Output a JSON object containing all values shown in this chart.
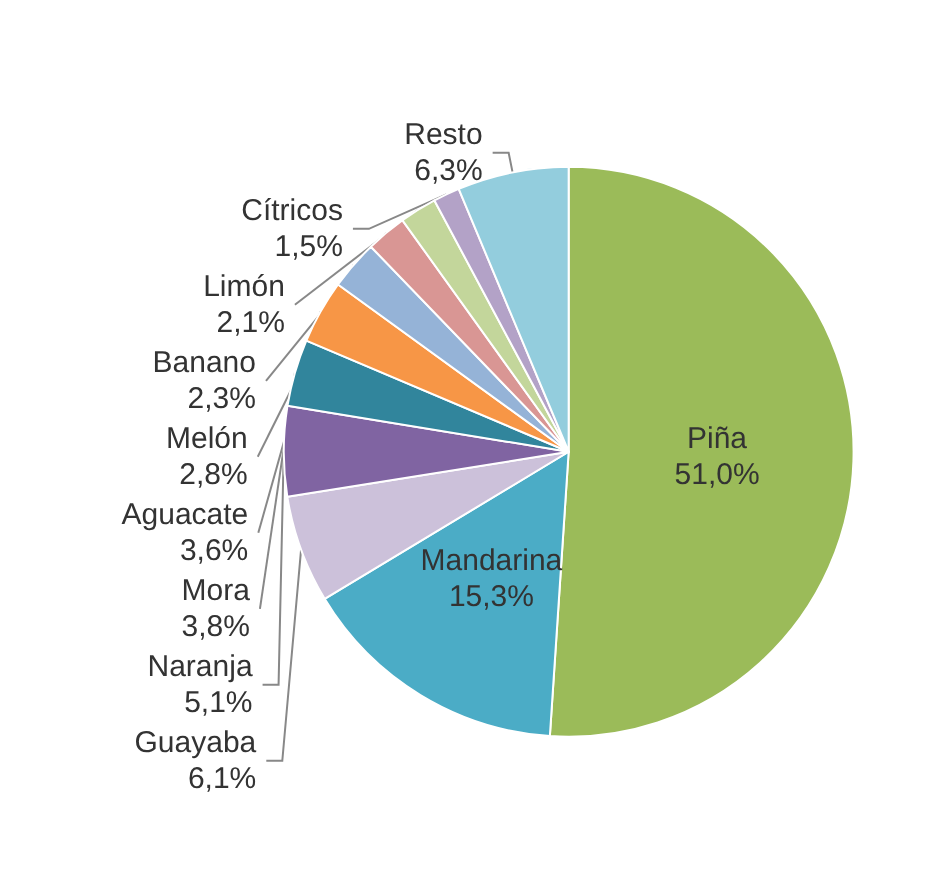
{
  "chart_data": {
    "type": "pie",
    "categories": [
      "Piña",
      "Mandarina",
      "Guayaba",
      "Naranja",
      "Mora",
      "Aguacate",
      "Melón",
      "Banano",
      "Limón",
      "Cítricos",
      "Resto"
    ],
    "values": [
      51.0,
      15.3,
      6.1,
      5.1,
      3.8,
      3.6,
      2.8,
      2.3,
      2.1,
      1.5,
      6.3
    ],
    "value_labels": [
      "51,0%",
      "15,3%",
      "6,1%",
      "5,1%",
      "3,8%",
      "3,6%",
      "2,8%",
      "2,3%",
      "2,1%",
      "1,5%",
      "6,3%"
    ],
    "colors": [
      "#9bbb59",
      "#4bacc6",
      "#ccc1da",
      "#8064a2",
      "#31859c",
      "#f79646",
      "#95b3d7",
      "#d99694",
      "#c3d69b",
      "#b3a2c7",
      "#93cddd"
    ],
    "legend": false
  }
}
